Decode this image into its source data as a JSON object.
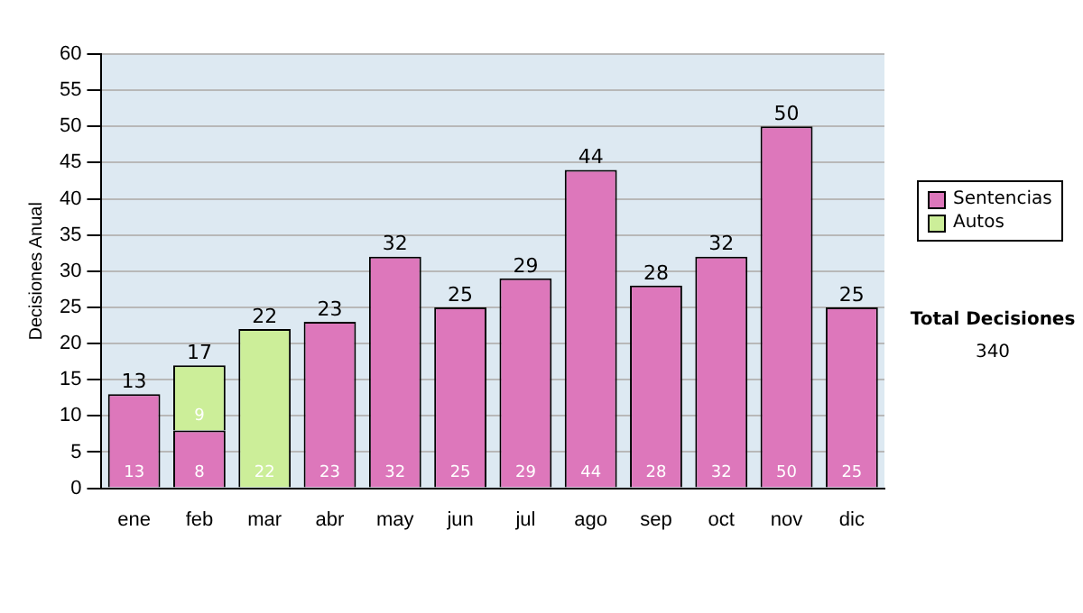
{
  "chart_data": {
    "type": "bar",
    "stacked": true,
    "ylabel": "Decisiones Anual",
    "categories": [
      "ene",
      "feb",
      "mar",
      "abr",
      "may",
      "jun",
      "jul",
      "ago",
      "sep",
      "oct",
      "nov",
      "dic"
    ],
    "series": [
      {
        "name": "Sentencias",
        "color": "#dd77bb",
        "values": [
          13,
          8,
          null,
          23,
          32,
          25,
          29,
          44,
          28,
          32,
          50,
          25
        ]
      },
      {
        "name": "Autos",
        "color": "#ccee99",
        "values": [
          null,
          9,
          22,
          null,
          null,
          null,
          null,
          null,
          null,
          null,
          null,
          null
        ]
      }
    ],
    "totals": [
      "13",
      "17",
      "22",
      "23",
      "32",
      "25",
      "29",
      "44",
      "28",
      "32",
      "50",
      "25"
    ],
    "data_labels": true,
    "ylim": [
      0,
      60
    ],
    "yticks": [
      0,
      5,
      10,
      15,
      20,
      25,
      30,
      35,
      40,
      45,
      50,
      55,
      60
    ],
    "grid": "y",
    "legend": "right",
    "annotations": [
      "Total Decisiones",
      "340"
    ]
  }
}
